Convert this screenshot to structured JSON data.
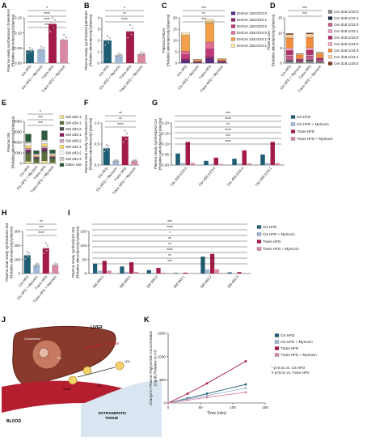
{
  "colors": {
    "cis": "#1e5d74",
    "cis_myr": "#9fb8d6",
    "trans": "#a51b48",
    "trans_myr": "#d98aa0",
    "dhcer": [
      "#5b2a86",
      "#8a2a6b",
      "#c23a7a",
      "#e46d93",
      "#f2a04a",
      "#fbe3a7"
    ],
    "cer": [
      "#8c8c8c",
      "#1f2f45",
      "#c45a8a",
      "#e5a0bd",
      "#b02d6a",
      "#f4a8b8",
      "#f28c3a",
      "#f6cfa0",
      "#7e3b1d"
    ],
    "sm": [
      "#eadf91",
      "#5a6e3c",
      "#4d4d4d",
      "#8c1f5a",
      "#c9a3c9",
      "#f5d36a",
      "#fafafa",
      "#cfcfcf",
      "#2b5a3c"
    ]
  },
  "groups": [
    "Cis HFD",
    "Cis HFD + Myriocin",
    "Trans HFD",
    "Trans HFD + Myriocin"
  ],
  "chart_data": [
    {
      "panel": "A",
      "type": "bar",
      "ylabel": "Plasma newly synthesized cholesterol (Relative abundance/μl plasma)",
      "categories": [
        "Cis HFD",
        "Cis HFD + Myriocin",
        "Trans HFD",
        "Trans HFD + Myriocin"
      ],
      "values": [
        0.042,
        0.046,
        0.13,
        0.078
      ],
      "ylim": [
        0,
        0.15
      ],
      "ticks": [
        "0.00",
        "0.05",
        "0.10",
        "0.15"
      ],
      "sig": [
        "*",
        "****",
        "****",
        "***"
      ]
    },
    {
      "panel": "B",
      "type": "bar",
      "ylabel": "Plasma newly synthesized palmitate (Relative abundance/μl plasma)",
      "categories": [
        "Cis HFD",
        "Cis HFD + Myriocin",
        "Trans HFD",
        "Trans HFD + Myriocin"
      ],
      "values": [
        2.0,
        0.7,
        2.8,
        0.8
      ],
      "ylim": [
        0,
        4
      ],
      "ticks": [
        "0",
        "1",
        "2",
        "3",
        "4"
      ],
      "sig": [
        "*",
        "**",
        "****"
      ]
    },
    {
      "panel": "C",
      "type": "bar",
      "stacked": true,
      "ylabel": "Plasma DHCer (Relative abundance/μl plasma)",
      "categories": [
        "Cis HFD",
        "Cis HFD + Myriocin",
        "Trans HFD",
        "Trans HFD + Myriocin"
      ],
      "series": [
        {
          "name": "DHCer d18:0/22:0",
          "values": [
            1.2,
            0.2,
            1.8,
            0.3
          ]
        },
        {
          "name": "DHCer d18:0/22:1",
          "values": [
            0.6,
            0.1,
            1.0,
            0.2
          ]
        },
        {
          "name": "DHCer d18:0/23:0",
          "values": [
            2.0,
            0.3,
            3.5,
            0.4
          ]
        },
        {
          "name": "DHCer d18:0/24:0",
          "values": [
            1.5,
            0.3,
            3.0,
            0.3
          ]
        },
        {
          "name": "DHCer d18:0/24:1",
          "values": [
            7.0,
            0.6,
            8.5,
            0.6
          ]
        },
        {
          "name": "DHCer d18:0/24:1",
          "values": [
            1.0,
            0.2,
            1.5,
            0.2
          ]
        }
      ],
      "ylim": [
        0,
        20
      ],
      "ticks": [
        "0",
        "5",
        "10",
        "15",
        "20"
      ],
      "sig": [
        "***",
        "**",
        "***"
      ]
    },
    {
      "panel": "D",
      "type": "bar",
      "stacked": true,
      "ylabel": "Plasma Cer (Relative abundance/μl plasma)",
      "categories": [
        "Cis HFD",
        "Cis HFD + Myriocin",
        "Trans HFD",
        "Trans HFD + Myriocin"
      ],
      "series": [
        {
          "name": "Cer d18:1/16:0",
          "values": [
            0.6,
            0.3,
            0.7,
            0.4
          ]
        },
        {
          "name": "Cer d18:1/16:1",
          "values": [
            0.3,
            0.1,
            0.3,
            0.1
          ]
        },
        {
          "name": "Cer d18:1/22:0",
          "values": [
            1.5,
            0.4,
            1.4,
            0.5
          ]
        },
        {
          "name": "Cer d18:1/22:1",
          "values": [
            0.4,
            0.1,
            0.4,
            0.1
          ]
        },
        {
          "name": "Cer d18:1/23:0",
          "values": [
            1.4,
            0.4,
            1.5,
            0.5
          ]
        },
        {
          "name": "Cer d18:1/24:0",
          "values": [
            0.8,
            0.2,
            0.8,
            0.2
          ]
        },
        {
          "name": "Cer d18:1/24:0",
          "values": [
            3.3,
            1.2,
            3.4,
            1.3
          ]
        },
        {
          "name": "Cer d18:1/24:1",
          "values": [
            1.2,
            0.4,
            1.2,
            0.4
          ]
        },
        {
          "name": "Cer d18:1/25:0",
          "values": [
            0.3,
            0.1,
            0.3,
            0.1
          ]
        }
      ],
      "ylim": [
        0,
        15
      ],
      "ticks": [
        "0",
        "5",
        "10",
        "15"
      ],
      "sig": [
        "***",
        "***"
      ]
    },
    {
      "panel": "E",
      "type": "bar",
      "stacked": true,
      "ylabel": "Plasma SM (Relative abundance/μl plasma)",
      "categories": [
        "Cis HFD",
        "Cis HFD + Myriocin",
        "Trans HFD",
        "Trans HFD + Myriocin"
      ],
      "series": [
        {
          "name": "SM d32:1",
          "values": [
            400,
            150,
            500,
            170
          ]
        },
        {
          "name": "SM d34:1",
          "values": [
            1500,
            700,
            1600,
            750
          ]
        },
        {
          "name": "SM d34:2",
          "values": [
            400,
            200,
            450,
            200
          ]
        },
        {
          "name": "SM d40:1",
          "values": [
            300,
            130,
            330,
            140
          ]
        },
        {
          "name": "SM d40:2",
          "values": [
            300,
            120,
            320,
            130
          ]
        },
        {
          "name": "SM d42:1",
          "values": [
            500,
            250,
            550,
            250
          ]
        },
        {
          "name": "SM d42:2",
          "values": [
            450,
            200,
            500,
            200
          ]
        },
        {
          "name": "SM d42:3",
          "values": [
            250,
            100,
            270,
            100
          ]
        },
        {
          "name": "Other SM",
          "values": [
            1500,
            600,
            1700,
            650
          ]
        }
      ],
      "ylim": [
        0,
        8000
      ],
      "ticks": [
        "0",
        "2000",
        "4000",
        "6000",
        "8000"
      ],
      "sig": [
        "*",
        "***",
        "***"
      ]
    },
    {
      "panel": "F",
      "type": "bar",
      "ylabel": "Plasma total newly synthesized Cer (Relative abundance/μl plasma)",
      "categories": [
        "Cis HFD",
        "Cis HFD + Myriocin",
        "Trans HFD",
        "Trans HFD + Myriocin"
      ],
      "values": [
        0.4,
        0.1,
        0.68,
        0.1
      ],
      "ylim": [
        0,
        1.0
      ],
      "ticks": [
        "0.0",
        "0.5",
        "1.0"
      ],
      "sig": [
        "**",
        "**",
        "****"
      ]
    },
    {
      "panel": "G",
      "type": "bar",
      "ylabel": "Plasma newly synthesized Cer (Relative abundance/μl plasma)",
      "categories": [
        "Cer d18:1/22:0",
        "Cer d18:1/23:0",
        "Cer d18:1/24:0",
        "Cer d18:1/24:1"
      ],
      "series": [
        {
          "name": "Cis HFD",
          "values": [
            0.055,
            0.02,
            0.03,
            0.05
          ]
        },
        {
          "name": "Cis HFD + Myriocin",
          "values": [
            0.01,
            0.005,
            0.008,
            0.01
          ]
        },
        {
          "name": "Trans HFD",
          "values": [
            0.11,
            0.035,
            0.07,
            0.11
          ]
        },
        {
          "name": "Trans HFD + Myriocin",
          "values": [
            0.01,
            0.005,
            0.008,
            0.01
          ]
        }
      ],
      "ylim": [
        0,
        0.2
      ],
      "ticks": [
        "0.00",
        "0.05",
        "0.10",
        "0.15",
        "0.20"
      ],
      "sig": [
        "***",
        "****",
        "**",
        "****",
        "***",
        "****"
      ]
    },
    {
      "panel": "H",
      "type": "bar",
      "ylabel": "Plasma total newly synthesized SM (Relative abundance/μl plasma)",
      "categories": [
        "Cis HFD",
        "Cis HFD + Myriocin",
        "Trans HFD",
        "Trans HFD + Myriocin"
      ],
      "values": [
        130,
        60,
        180,
        60
      ],
      "ylim": [
        0,
        300
      ],
      "ticks": [
        "0",
        "100",
        "200",
        "300"
      ],
      "sig": [
        "**",
        "***",
        "****"
      ]
    },
    {
      "panel": "I",
      "type": "bar",
      "ylabel": "Plasma newly synthesized SM (Relative abundance/μl plasma)",
      "categories": [
        "SM d34:1",
        "SM d40:1",
        "SM d40:2",
        "SM d42:1",
        "SM d42:2",
        "SM d42:3"
      ],
      "series": [
        {
          "name": "Cis HFD",
          "values": [
            35,
            25,
            12,
            2,
            60,
            4
          ]
        },
        {
          "name": "Cis HFD + Myriocin",
          "values": [
            10,
            6,
            3,
            1,
            15,
            1
          ]
        },
        {
          "name": "Trans HFD",
          "values": [
            45,
            40,
            20,
            3,
            70,
            5
          ]
        },
        {
          "name": "Trans HFD + Myriocin",
          "values": [
            10,
            6,
            3,
            1,
            15,
            1
          ]
        }
      ],
      "ylim": [
        0,
        150
      ],
      "ticks": [
        "0",
        "50",
        "100",
        "150"
      ],
      "sig": [
        "***",
        "****",
        "*",
        "**",
        "**",
        "****",
        "**",
        "***"
      ]
    },
    {
      "panel": "K",
      "type": "line",
      "xlabel": "Time (min)",
      "ylabel": "Change in Plasma Triglyceride Concentration (mg/dl) Relative to t=0",
      "x": [
        0,
        30,
        60,
        120
      ],
      "series": [
        {
          "name": "Cis HFD",
          "values": [
            0,
            100,
            200,
            400
          ]
        },
        {
          "name": "Cis HFD + Myriocin",
          "values": [
            0,
            80,
            160,
            320
          ]
        },
        {
          "name": "Trans HFD",
          "values": [
            0,
            200,
            420,
            900
          ]
        },
        {
          "name": "Trans HFD + Myriocin",
          "values": [
            0,
            60,
            120,
            230
          ]
        }
      ],
      "xlim": [
        0,
        150
      ],
      "xticks": [
        "0",
        "50",
        "100",
        "150"
      ],
      "ylim": [
        0,
        1500
      ],
      "yticks": [
        "0",
        "500",
        "1000",
        "1500"
      ],
      "note1": "* p<0.01 vs. Cis HFD",
      "note2": "# p<0.01 vs. Trans HFD"
    }
  ],
  "diagram": {
    "liver": "LIVER",
    "blood": "BLOOD",
    "tissue1": "EXTRAHEPATIC",
    "tissue2": "TISSUE",
    "tyloxapol": "Tyloxapol",
    "tyloxapol2": "Tyloxapol",
    "cholesterol": "Cholesterol",
    "vldl": "VLDL",
    "ldl": "LDL",
    "tg": "TG",
    "lpl": "LPL"
  },
  "panel_letters": [
    "A",
    "B",
    "C",
    "D",
    "E",
    "F",
    "G",
    "H",
    "I",
    "J",
    "K"
  ]
}
